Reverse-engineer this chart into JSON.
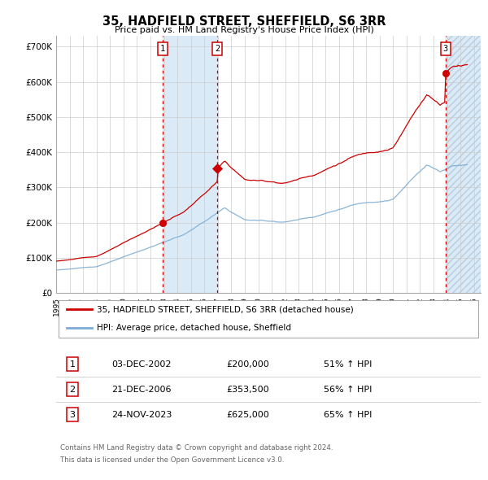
{
  "title": "35, HADFIELD STREET, SHEFFIELD, S6 3RR",
  "subtitle": "Price paid vs. HM Land Registry's House Price Index (HPI)",
  "legend_line1": "35, HADFIELD STREET, SHEFFIELD, S6 3RR (detached house)",
  "legend_line2": "HPI: Average price, detached house, Sheffield",
  "property_color": "#cc0000",
  "hpi_color": "#7dadd4",
  "transactions": [
    {
      "num": 1,
      "date": "03-DEC-2002",
      "price": 200000,
      "pct": "51%",
      "x_year": 2002.92
    },
    {
      "num": 2,
      "date": "21-DEC-2006",
      "price": 353500,
      "pct": "56%",
      "x_year": 2006.97
    },
    {
      "num": 3,
      "date": "24-NOV-2023",
      "price": 625000,
      "pct": "65%",
      "x_year": 2023.89
    }
  ],
  "shade_regions": [
    [
      2002.92,
      2006.97
    ]
  ],
  "shade_color": "#daeaf7",
  "hatch_region": [
    2023.89,
    2026.5
  ],
  "hatch_color": "#daeaf7",
  "vline_color": "#cc0000",
  "yticks": [
    0,
    100000,
    200000,
    300000,
    400000,
    500000,
    600000,
    700000
  ],
  "ytick_labels": [
    "£0",
    "£100K",
    "£200K",
    "£300K",
    "£400K",
    "£500K",
    "£600K",
    "£700K"
  ],
  "xlim": [
    1995.0,
    2026.5
  ],
  "ylim": [
    0,
    730000
  ],
  "footnote1": "Contains HM Land Registry data © Crown copyright and database right 2024.",
  "footnote2": "This data is licensed under the Open Government Licence v3.0."
}
